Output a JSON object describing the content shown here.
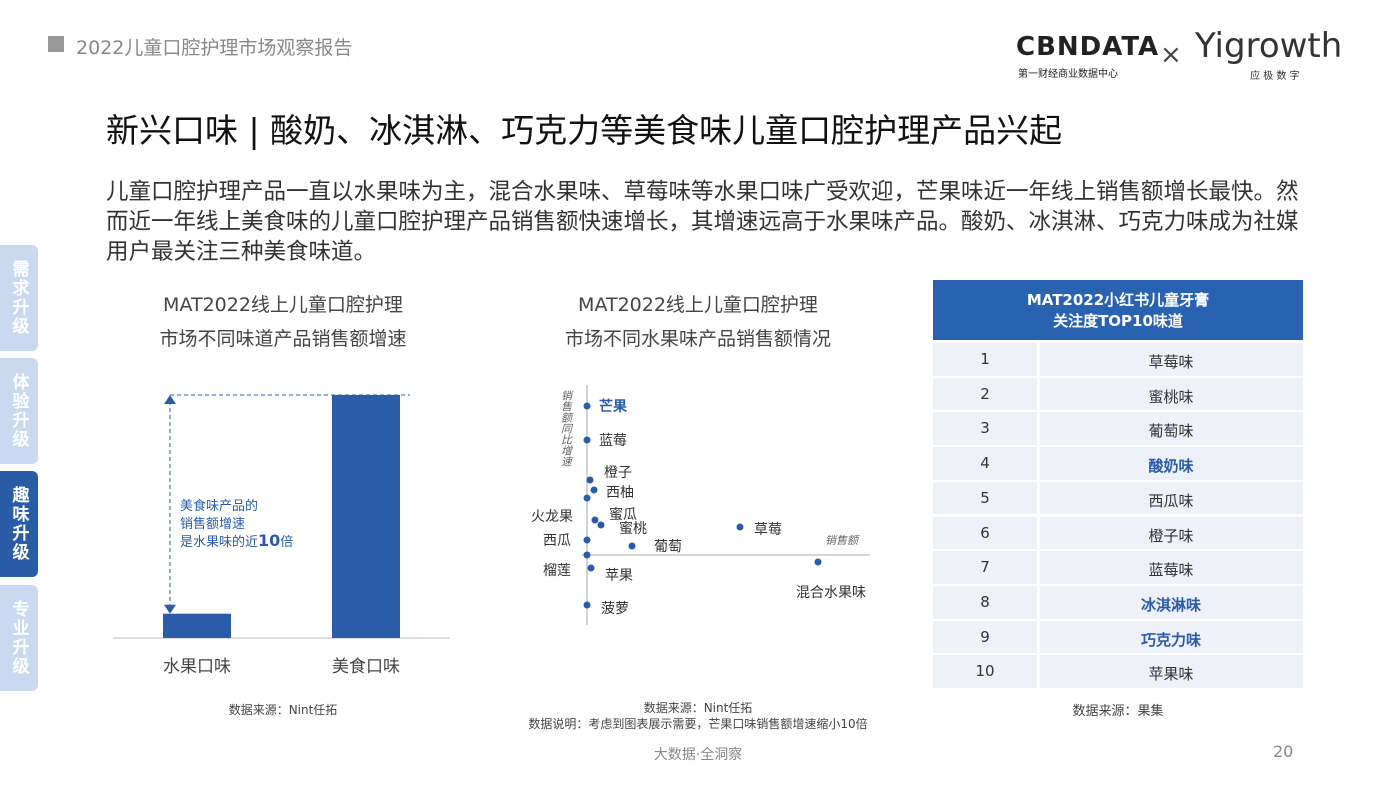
{
  "header": {
    "report": "2022儿童口腔护理市场观察报告",
    "logo1": "CBNDATA",
    "logo1_sub": "第一财经商业数据中心",
    "cross": "×",
    "logo2": "Yigrowth",
    "logo2_sub": "应 极 数 字"
  },
  "title": "新兴口味 | 酸奶、冰淇淋、巧克力等美食味儿童口腔护理产品兴起",
  "body": "儿童口腔护理产品一直以水果味为主，混合水果味、草莓味等水果口味广受欢迎，芒果味近一年线上销售额增长最快。然而近一年线上美食味的儿童口腔护理产品销售额快速增长，其增速远高于水果味产品。酸奶、冰淇淋、巧克力味成为社媒用户最关注三种美食味道。",
  "tabs": {
    "items": [
      "需求升级",
      "体验升级",
      "趣味升级",
      "专业升级"
    ],
    "active": 2
  },
  "chart_data": [
    {
      "type": "bar",
      "title": [
        "MAT2022线上儿童口腔护理",
        "市场不同味道产品销售额增速"
      ],
      "categories": [
        "水果口味",
        "美食口味"
      ],
      "values": [
        1,
        10
      ],
      "color": "#2a5caa",
      "ylim": [
        0,
        10
      ],
      "annotation": {
        "lines": [
          "美食味产品的",
          "销售额增速"
        ],
        "prefix": "是水果味的近",
        "highlight": "10",
        "suffix": "倍"
      },
      "source": "数据来源：Nint任拓"
    },
    {
      "type": "scatter",
      "title": [
        "MAT2022线上儿童口腔护理",
        "市场不同水果味产品销售额情况"
      ],
      "x_label": "销售额",
      "y_label": "销售额同比增速",
      "labels": [
        "芒果",
        "蓝莓",
        "橙子",
        "西柚",
        "火龙果",
        "蜜瓜",
        "蜜桃",
        "葡萄",
        "西瓜",
        "草莓",
        "混合水果味",
        "榴莲",
        "苹果",
        "菠萝"
      ],
      "x": [
        0,
        0,
        3,
        7,
        0,
        8,
        14,
        45,
        0,
        153,
        231,
        0,
        4,
        0
      ],
      "values": [
        149,
        115,
        75,
        65,
        57,
        35,
        30,
        9,
        15,
        28,
        -7,
        0,
        -13,
        -50
      ],
      "color": "#2a5caa",
      "highlight_index": 0,
      "xlim": [
        -60,
        283
      ],
      "ylim": [
        -80,
        170
      ],
      "source": "数据来源：Nint任拓",
      "note": "数据说明：考虑到图表展示需要，芒果口味销售额增速缩小10倍"
    }
  ],
  "table": {
    "header": [
      "MAT2022小红书儿童牙膏",
      "关注度TOP10味道"
    ],
    "rows": [
      [
        1,
        "草莓味"
      ],
      [
        2,
        "蜜桃味"
      ],
      [
        3,
        "葡萄味"
      ],
      [
        4,
        "酸奶味"
      ],
      [
        5,
        "西瓜味"
      ],
      [
        6,
        "橙子味"
      ],
      [
        7,
        "蓝莓味"
      ],
      [
        8,
        "冰淇淋味"
      ],
      [
        9,
        "巧克力味"
      ],
      [
        10,
        "苹果味"
      ]
    ],
    "highlight_rows": [
      3,
      7,
      8
    ],
    "source": "数据来源：果集"
  },
  "footer": {
    "slogan": "大数据·全洞察",
    "page": "20"
  }
}
